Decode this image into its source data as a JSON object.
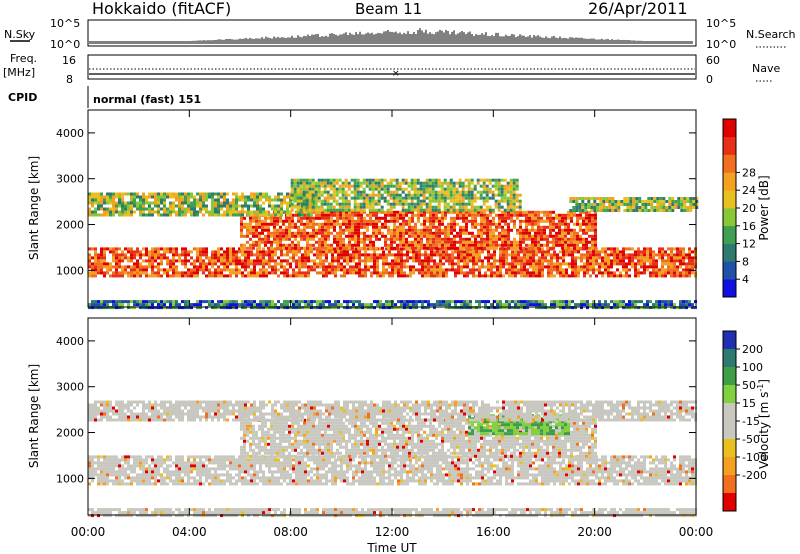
{
  "header": {
    "station": "Hokkaido (fitACF)",
    "beam": "Beam 11",
    "date": "26/Apr/2011"
  },
  "strip_labels": {
    "nsky": "N.Sky",
    "nsearch": "N.Search",
    "freq": "Freq.",
    "freq_unit": "[MHz]",
    "nave": "Nave",
    "cpid": "CPID",
    "cpid_value": "normal (fast) 151"
  },
  "strip_ticks": {
    "nsky_left": [
      "10^5",
      "10^0"
    ],
    "nsky_right": [
      "10^5",
      "10^0"
    ],
    "freq_left": [
      "16",
      "8"
    ],
    "nave_right": [
      "60",
      "0"
    ]
  },
  "chart_data": [
    {
      "type": "heatmap",
      "name": "power-panel",
      "ylabel": "Slant Range [km]",
      "ylim": [
        200,
        4500
      ],
      "yticks": [
        1000,
        2000,
        3000,
        4000
      ],
      "xlim_hours": [
        0,
        24
      ],
      "colorbar": {
        "label": "Power [dB]",
        "ticks": [
          "4",
          "8",
          "12",
          "16",
          "20",
          "24",
          "28"
        ],
        "colors": [
          "#1010e0",
          "#2050a8",
          "#2e7a6e",
          "#3ea050",
          "#88c838",
          "#e8c020",
          "#f4a020",
          "#f07020",
          "#e83018",
          "#e00000"
        ]
      },
      "bands": [
        {
          "range": [
            900,
            1500
          ],
          "from": 0,
          "to": 24,
          "level": "high"
        },
        {
          "range": [
            1500,
            2300
          ],
          "from": 6,
          "to": 20,
          "level": "high"
        },
        {
          "range": [
            2200,
            2700
          ],
          "from": 0,
          "to": 9,
          "level": "mid"
        },
        {
          "range": [
            2300,
            2600
          ],
          "from": 19,
          "to": 24,
          "level": "mid"
        },
        {
          "range": [
            2300,
            3000
          ],
          "from": 8,
          "to": 17,
          "level": "mid"
        },
        {
          "range": [
            200,
            350
          ],
          "from": 0,
          "to": 24,
          "level": "low"
        }
      ]
    },
    {
      "type": "heatmap",
      "name": "velocity-panel",
      "ylabel": "Slant Range [km]",
      "ylim": [
        200,
        4500
      ],
      "yticks": [
        1000,
        2000,
        3000,
        4000
      ],
      "xlim_hours": [
        0,
        24
      ],
      "xticks": [
        "00:00",
        "04:00",
        "08:00",
        "12:00",
        "16:00",
        "20:00",
        "00:00"
      ],
      "xlabel": "Time UT",
      "colorbar": {
        "label": "Velocity [m s^-1]",
        "ticks": [
          "200",
          "100",
          "50",
          "15",
          "-15",
          "-50",
          "-100",
          "-200"
        ],
        "colors": [
          "#2030b0",
          "#2e7a6e",
          "#3e9e48",
          "#80d040",
          "#c8c8c0",
          "#c8c8c0",
          "#e8c020",
          "#f4a020",
          "#f07020",
          "#e00000"
        ]
      },
      "bands": [
        {
          "range": [
            900,
            1500
          ],
          "from": 0,
          "to": 24,
          "level": "ground"
        },
        {
          "range": [
            1500,
            2300
          ],
          "from": 6,
          "to": 20,
          "level": "ground"
        },
        {
          "range": [
            2000,
            2400
          ],
          "from": 15,
          "to": 19,
          "level": "positive"
        },
        {
          "range": [
            2300,
            2700
          ],
          "from": 0,
          "to": 24,
          "level": "ground"
        },
        {
          "range": [
            200,
            350
          ],
          "from": 0,
          "to": 24,
          "level": "ground"
        }
      ]
    }
  ]
}
